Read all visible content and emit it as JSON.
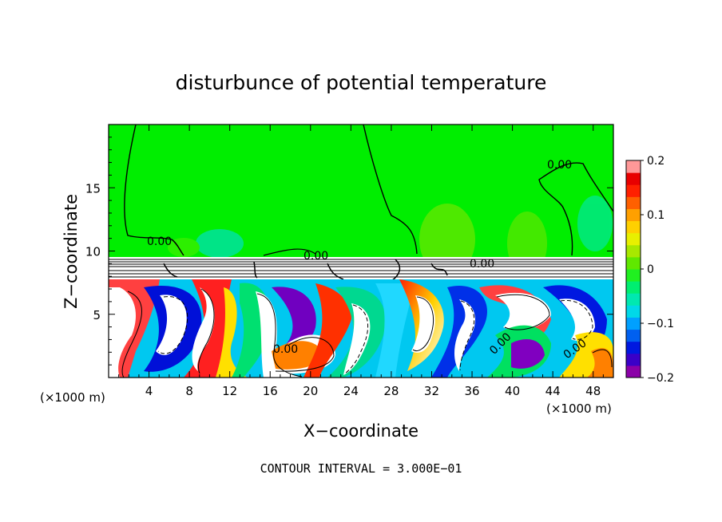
{
  "chart_data": {
    "type": "heatmap",
    "title": "disturbunce of potential temperature",
    "xlabel": "X−coordinate",
    "ylabel": "Z−coordinate",
    "x_unit": "(×1000 m)",
    "z_unit": "(×1000 m)",
    "xlim": [
      0,
      50
    ],
    "ylim": [
      0,
      20
    ],
    "x_ticks": [
      "4",
      "8",
      "12",
      "16",
      "20",
      "24",
      "28",
      "32",
      "36",
      "40",
      "44",
      "48"
    ],
    "y_ticks": [
      "5",
      "10",
      "15"
    ],
    "contour_label": "0.00",
    "contour_interval_text": "CONTOUR INTERVAL = 3.000E−01",
    "colorbar": {
      "range": [
        -0.2,
        0.2
      ],
      "tick_labels": [
        "0.2",
        "0.1",
        "0",
        "−0.1",
        "−0.2"
      ],
      "colors": [
        "#8b00a8",
        "#3a00c8",
        "#0018e0",
        "#0060f0",
        "#00a0ff",
        "#00d8e8",
        "#00e8b0",
        "#00ee70",
        "#20f020",
        "#60e800",
        "#a8e800",
        "#e8f000",
        "#ffd000",
        "#ffa000",
        "#ff6000",
        "#ff2000",
        "#e80000",
        "#ff9898"
      ]
    }
  }
}
